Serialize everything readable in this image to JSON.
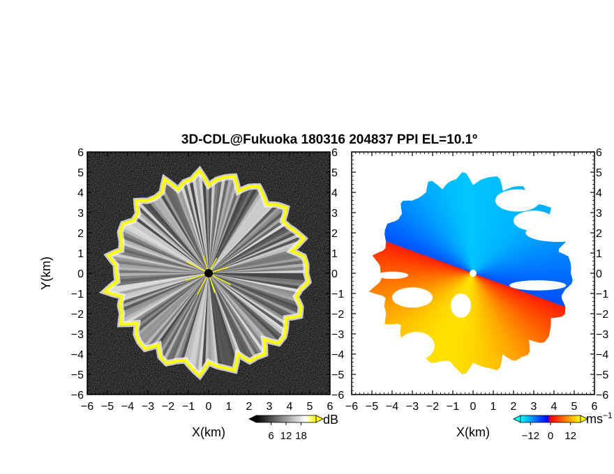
{
  "chart_data": [
    {
      "type": "heatmap",
      "quantity": "reflectivity / SNR",
      "title": "3D-CDL@Fukuoka 180316 204837 PPI EL=10.1º",
      "xlabel": "X(km)",
      "ylabel": "Y(km)",
      "xlim": [
        -6,
        6
      ],
      "ylim": [
        -6,
        6
      ],
      "xticks": [
        "−6",
        "−5",
        "−4",
        "−3",
        "−2",
        "−1",
        "0",
        "1",
        "2",
        "3",
        "4",
        "5",
        "6"
      ],
      "yticks": [
        "6",
        "5",
        "4",
        "3",
        "2",
        "1",
        "0",
        "−1",
        "−2",
        "−3",
        "−4",
        "−5",
        "−6"
      ],
      "grid": false,
      "echo_radius_km": 4.7,
      "colorbar": {
        "label": "dB",
        "ticks": [
          "6",
          "12",
          "18"
        ],
        "range": [
          0,
          24
        ],
        "colors": [
          "#000000",
          "#ffffff",
          "#ffff00"
        ]
      }
    },
    {
      "type": "heatmap",
      "quantity": "Doppler velocity",
      "xlabel": "X(km)",
      "ylabel": "",
      "xlim": [
        -6,
        6
      ],
      "ylim": [
        -6,
        6
      ],
      "xticks": [
        "−6",
        "−5",
        "−4",
        "−3",
        "−2",
        "−1",
        "0",
        "1",
        "2",
        "3",
        "4",
        "5",
        "6"
      ],
      "yticks": [
        "6",
        "5",
        "4",
        "3",
        "2",
        "1",
        "0",
        "−1",
        "−2",
        "−3",
        "−4",
        "−5",
        "−6"
      ],
      "grid": false,
      "echo_radius_km": 4.7,
      "colorbar": {
        "label": "ms",
        "label_exponent": "−1",
        "ticks": [
          "−12",
          "0",
          "12"
        ],
        "range": [
          -18,
          18
        ],
        "colors": [
          "#00ffff",
          "#0000ff",
          "#ff0000",
          "#ffff00"
        ]
      }
    }
  ]
}
